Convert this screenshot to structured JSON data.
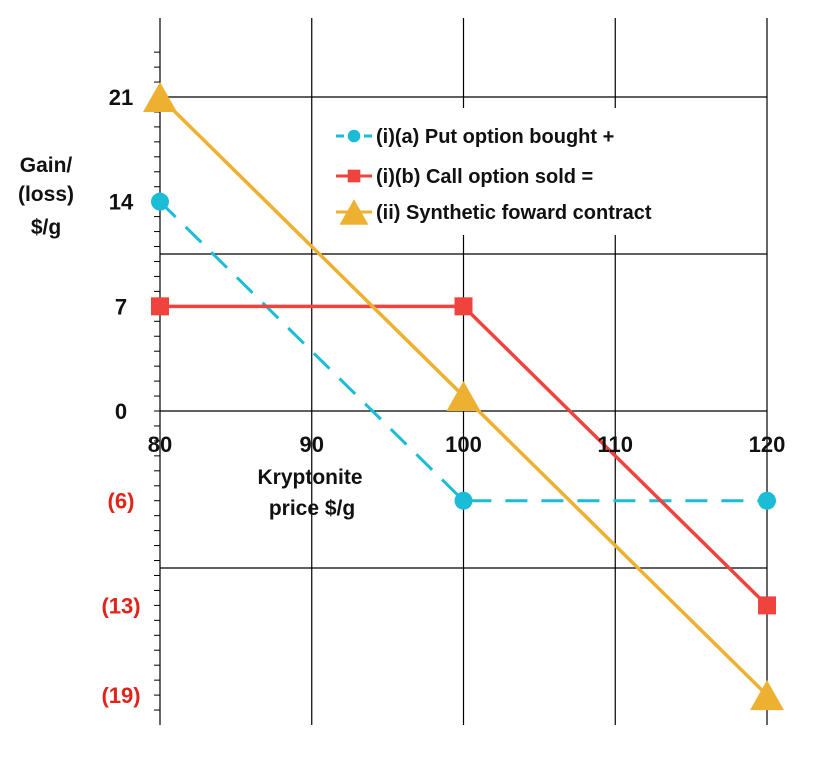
{
  "chart_data": {
    "type": "line",
    "xlabel": [
      "Kryptonite",
      "price $/g"
    ],
    "ylabel": [
      "Gain/",
      "(loss)",
      "$/g"
    ],
    "xlim": [
      80,
      120
    ],
    "ylim": [
      -20,
      25
    ],
    "x_ticks": [
      {
        "value": 80,
        "label": "80"
      },
      {
        "value": 90,
        "label": "90"
      },
      {
        "value": 100,
        "label": "100"
      },
      {
        "value": 110,
        "label": "110"
      },
      {
        "value": 120,
        "label": "120"
      }
    ],
    "y_ticks": [
      {
        "value": 21,
        "label": "21",
        "negative": false
      },
      {
        "value": 14,
        "label": "14",
        "negative": false
      },
      {
        "value": 7,
        "label": "7",
        "negative": false
      },
      {
        "value": 0,
        "label": "0",
        "negative": false
      },
      {
        "value": -6,
        "label": "(6)",
        "negative": true
      },
      {
        "value": -13,
        "label": "(13)",
        "negative": true
      },
      {
        "value": -19,
        "label": "(19)",
        "negative": true
      }
    ],
    "grid": true,
    "legend_position": "top-right",
    "series": [
      {
        "name": "(i)(a) Put option bought +",
        "color": "#1bbcd6",
        "dash": true,
        "marker": "circle",
        "x": [
          80,
          100,
          120
        ],
        "y": [
          14,
          -6,
          -6
        ]
      },
      {
        "name": "(i)(b) Call option sold =",
        "color": "#f0433e",
        "dash": false,
        "marker": "square",
        "x": [
          80,
          100,
          120
        ],
        "y": [
          7,
          7,
          -13
        ]
      },
      {
        "name": "(ii) Synthetic foward contract",
        "color": "#eeb030",
        "dash": false,
        "marker": "triangle",
        "x": [
          80,
          100,
          120
        ],
        "y": [
          21,
          1,
          -19
        ]
      }
    ]
  }
}
